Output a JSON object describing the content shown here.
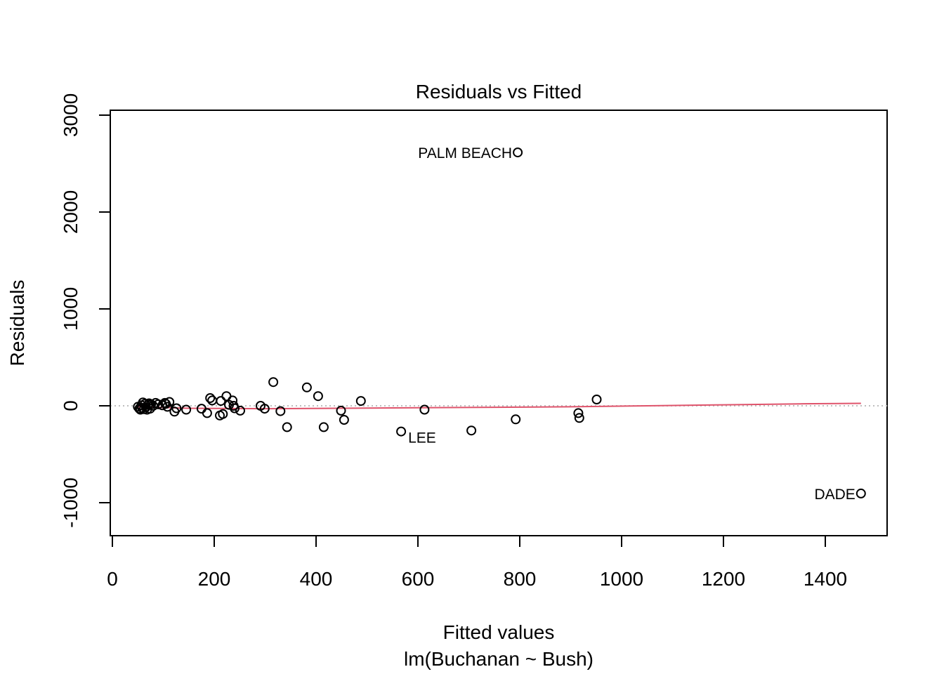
{
  "chart_data": {
    "type": "scatter",
    "title": "Residuals vs Fitted",
    "xlabel": "Fitted values",
    "xlabel_sub": "lm(Buchanan ~ Bush)",
    "ylabel": "Residuals",
    "xlim": [
      0,
      1500
    ],
    "ylim": [
      -1000,
      3000
    ],
    "x_ticks": [
      0,
      200,
      400,
      600,
      800,
      1000,
      1200,
      1400
    ],
    "y_ticks": [
      -1000,
      0,
      1000,
      2000,
      3000
    ],
    "x_tick_labels": [
      "0",
      "200",
      "400",
      "600",
      "800",
      "1000",
      "1200",
      "1400"
    ],
    "y_tick_labels": [
      "-1000",
      "0",
      "1000",
      "2000",
      "3000"
    ],
    "reference_line_y": 0,
    "colors": {
      "points": "#000000",
      "smooth": "#DF536B",
      "reference": "#BEBEBE"
    },
    "points": [
      {
        "x": 50,
        "y": -10
      },
      {
        "x": 53,
        "y": -30
      },
      {
        "x": 55,
        "y": -40
      },
      {
        "x": 57,
        "y": 5
      },
      {
        "x": 58,
        "y": -20
      },
      {
        "x": 60,
        "y": 35
      },
      {
        "x": 62,
        "y": -35
      },
      {
        "x": 64,
        "y": 20
      },
      {
        "x": 66,
        "y": -15
      },
      {
        "x": 68,
        "y": -40
      },
      {
        "x": 70,
        "y": 10
      },
      {
        "x": 72,
        "y": 25
      },
      {
        "x": 74,
        "y": -30
      },
      {
        "x": 76,
        "y": 15
      },
      {
        "x": 80,
        "y": 0
      },
      {
        "x": 85,
        "y": 30
      },
      {
        "x": 90,
        "y": 15
      },
      {
        "x": 98,
        "y": 5
      },
      {
        "x": 103,
        "y": 30
      },
      {
        "x": 105,
        "y": 20
      },
      {
        "x": 108,
        "y": -10
      },
      {
        "x": 112,
        "y": 40
      },
      {
        "x": 122,
        "y": -60
      },
      {
        "x": 126,
        "y": -25
      },
      {
        "x": 145,
        "y": -40
      },
      {
        "x": 175,
        "y": -30
      },
      {
        "x": 186,
        "y": -75
      },
      {
        "x": 192,
        "y": 80
      },
      {
        "x": 196,
        "y": 55
      },
      {
        "x": 211,
        "y": -100
      },
      {
        "x": 213,
        "y": 50
      },
      {
        "x": 217,
        "y": -85
      },
      {
        "x": 224,
        "y": 100
      },
      {
        "x": 229,
        "y": 10
      },
      {
        "x": 236,
        "y": 55
      },
      {
        "x": 238,
        "y": 0
      },
      {
        "x": 240,
        "y": -25
      },
      {
        "x": 251,
        "y": -50
      },
      {
        "x": 291,
        "y": 0
      },
      {
        "x": 299,
        "y": -30
      },
      {
        "x": 316,
        "y": 245
      },
      {
        "x": 330,
        "y": -55
      },
      {
        "x": 343,
        "y": -220
      },
      {
        "x": 382,
        "y": 190
      },
      {
        "x": 404,
        "y": 100
      },
      {
        "x": 415,
        "y": -220
      },
      {
        "x": 449,
        "y": -50
      },
      {
        "x": 455,
        "y": -145
      },
      {
        "x": 488,
        "y": 50
      },
      {
        "x": 567,
        "y": -265
      },
      {
        "x": 613,
        "y": -40
      },
      {
        "x": 705,
        "y": -255
      },
      {
        "x": 792,
        "y": -140
      },
      {
        "x": 796,
        "y": 2615
      },
      {
        "x": 915,
        "y": -75
      },
      {
        "x": 917,
        "y": -125
      },
      {
        "x": 951,
        "y": 65
      },
      {
        "x": 1470,
        "y": -905
      }
    ],
    "smooth_line": [
      {
        "x": 50,
        "y": -10
      },
      {
        "x": 150,
        "y": -25
      },
      {
        "x": 300,
        "y": -30
      },
      {
        "x": 450,
        "y": -25
      },
      {
        "x": 600,
        "y": -20
      },
      {
        "x": 750,
        "y": -15
      },
      {
        "x": 900,
        "y": -10
      },
      {
        "x": 1050,
        "y": 0
      },
      {
        "x": 1200,
        "y": 10
      },
      {
        "x": 1350,
        "y": 20
      },
      {
        "x": 1470,
        "y": 25
      }
    ],
    "annotations": [
      {
        "label": "PALM BEACH",
        "x": 796,
        "y": 2615,
        "side": "left"
      },
      {
        "label": "LEE",
        "x": 567,
        "y": -265,
        "side": "below-right"
      },
      {
        "label": "DADE",
        "x": 1470,
        "y": -905,
        "side": "left"
      }
    ]
  }
}
